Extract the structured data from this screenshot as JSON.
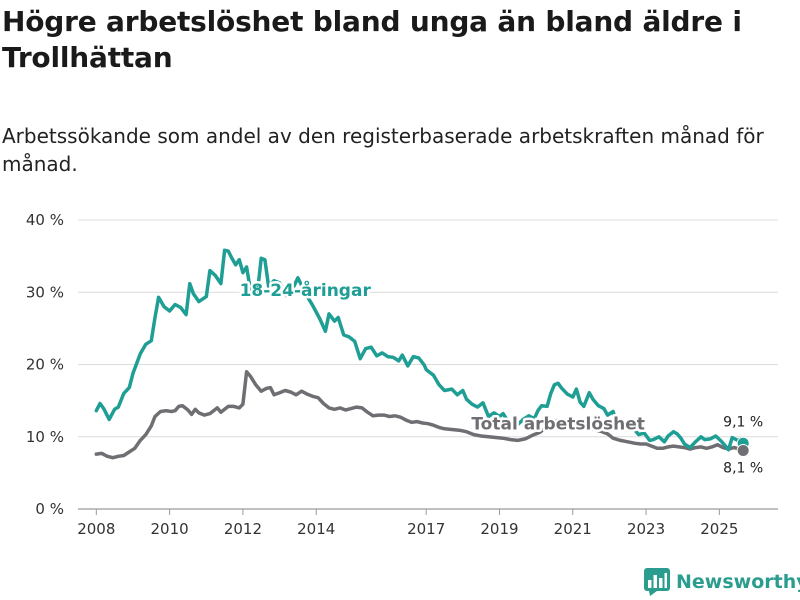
{
  "header": {
    "title": "Högre arbetslöshet bland unga än bland äldre i Trollhättan",
    "subtitle": "Arbetssökande som andel av den registerbaserade arbetskraften månad för månad."
  },
  "brand": {
    "name": "Newsworthy",
    "color": "#2a9d8f"
  },
  "chart_data": {
    "type": "line",
    "title": "Högre arbetslöshet bland unga än bland äldre i Trollhättan",
    "subtitle": "Arbetssökande som andel av den registerbaserade arbetskraften månad för månad.",
    "xlabel": "",
    "ylabel": "",
    "xlim": [
      2007.5,
      2026.6
    ],
    "ylim": [
      0,
      40
    ],
    "grid": true,
    "y_ticks": [
      {
        "value": 0,
        "label": "0 %"
      },
      {
        "value": 10,
        "label": "10 %"
      },
      {
        "value": 20,
        "label": "20 %"
      },
      {
        "value": 30,
        "label": "30 %"
      },
      {
        "value": 40,
        "label": "40 %"
      }
    ],
    "x_ticks": [
      {
        "value": 2008,
        "label": "2008"
      },
      {
        "value": 2010,
        "label": "2010"
      },
      {
        "value": 2012,
        "label": "2012"
      },
      {
        "value": 2014,
        "label": "2014"
      },
      {
        "value": 2017,
        "label": "2017"
      },
      {
        "value": 2019,
        "label": "2019"
      },
      {
        "value": 2021,
        "label": "2021"
      },
      {
        "value": 2023,
        "label": "2023"
      },
      {
        "value": 2025,
        "label": "2025"
      }
    ],
    "series": [
      {
        "name": "18-24-åringar",
        "color": "#1e9e94",
        "end_label": "9,1 %",
        "points": [
          [
            2008.0,
            13.6
          ],
          [
            2008.1,
            14.6
          ],
          [
            2008.2,
            13.9
          ],
          [
            2008.35,
            12.4
          ],
          [
            2008.5,
            13.8
          ],
          [
            2008.6,
            14.1
          ],
          [
            2008.75,
            16.0
          ],
          [
            2008.9,
            16.8
          ],
          [
            2009.0,
            18.8
          ],
          [
            2009.2,
            21.5
          ],
          [
            2009.35,
            22.8
          ],
          [
            2009.5,
            23.3
          ],
          [
            2009.6,
            26.5
          ],
          [
            2009.7,
            29.3
          ],
          [
            2009.85,
            28.0
          ],
          [
            2010.0,
            27.4
          ],
          [
            2010.15,
            28.3
          ],
          [
            2010.3,
            27.9
          ],
          [
            2010.45,
            26.9
          ],
          [
            2010.55,
            31.2
          ],
          [
            2010.65,
            29.8
          ],
          [
            2010.8,
            28.7
          ],
          [
            2011.0,
            29.4
          ],
          [
            2011.1,
            33.0
          ],
          [
            2011.25,
            32.3
          ],
          [
            2011.4,
            31.2
          ],
          [
            2011.5,
            35.8
          ],
          [
            2011.6,
            35.7
          ],
          [
            2011.7,
            34.7
          ],
          [
            2011.8,
            33.8
          ],
          [
            2011.9,
            34.5
          ],
          [
            2012.0,
            32.7
          ],
          [
            2012.1,
            33.5
          ],
          [
            2012.2,
            30.4
          ],
          [
            2012.4,
            30.2
          ],
          [
            2012.5,
            34.7
          ],
          [
            2012.6,
            34.5
          ],
          [
            2012.7,
            30.8
          ],
          [
            2012.85,
            31.6
          ],
          [
            2013.0,
            31.3
          ],
          [
            2013.2,
            29.5
          ],
          [
            2013.35,
            30.4
          ],
          [
            2013.5,
            32.0
          ],
          [
            2013.7,
            29.9
          ],
          [
            2013.9,
            28.2
          ],
          [
            2014.1,
            26.3
          ],
          [
            2014.25,
            24.6
          ],
          [
            2014.35,
            27.0
          ],
          [
            2014.5,
            26.0
          ],
          [
            2014.6,
            26.5
          ],
          [
            2014.75,
            24.1
          ],
          [
            2014.9,
            23.8
          ],
          [
            2015.05,
            23.2
          ],
          [
            2015.2,
            20.8
          ],
          [
            2015.35,
            22.2
          ],
          [
            2015.5,
            22.4
          ],
          [
            2015.65,
            21.2
          ],
          [
            2015.8,
            21.6
          ],
          [
            2015.95,
            21.1
          ],
          [
            2016.1,
            21.0
          ],
          [
            2016.25,
            20.5
          ],
          [
            2016.35,
            21.3
          ],
          [
            2016.5,
            19.8
          ],
          [
            2016.65,
            21.1
          ],
          [
            2016.8,
            20.9
          ],
          [
            2016.95,
            19.9
          ],
          [
            2017.0,
            19.3
          ],
          [
            2017.2,
            18.5
          ],
          [
            2017.35,
            17.2
          ],
          [
            2017.5,
            16.4
          ],
          [
            2017.7,
            16.6
          ],
          [
            2017.85,
            15.8
          ],
          [
            2018.0,
            16.4
          ],
          [
            2018.1,
            15.2
          ],
          [
            2018.25,
            14.5
          ],
          [
            2018.4,
            14.1
          ],
          [
            2018.55,
            14.7
          ],
          [
            2018.7,
            12.8
          ],
          [
            2018.85,
            13.3
          ],
          [
            2019.0,
            12.8
          ],
          [
            2019.1,
            13.2
          ],
          [
            2019.2,
            12.4
          ],
          [
            2019.35,
            11.9
          ],
          [
            2019.5,
            11.7
          ],
          [
            2019.65,
            12.4
          ],
          [
            2019.8,
            12.9
          ],
          [
            2019.95,
            12.5
          ],
          [
            2020.05,
            13.6
          ],
          [
            2020.15,
            14.3
          ],
          [
            2020.3,
            14.2
          ],
          [
            2020.4,
            16.0
          ],
          [
            2020.5,
            17.2
          ],
          [
            2020.6,
            17.4
          ],
          [
            2020.7,
            16.7
          ],
          [
            2020.85,
            15.9
          ],
          [
            2021.0,
            15.5
          ],
          [
            2021.1,
            16.6
          ],
          [
            2021.2,
            14.8
          ],
          [
            2021.3,
            14.2
          ],
          [
            2021.45,
            16.1
          ],
          [
            2021.55,
            15.2
          ],
          [
            2021.7,
            14.3
          ],
          [
            2021.85,
            13.9
          ],
          [
            2021.95,
            13.0
          ],
          [
            2022.1,
            13.5
          ],
          [
            2022.2,
            11.8
          ],
          [
            2022.35,
            12.3
          ],
          [
            2022.5,
            11.3
          ],
          [
            2022.65,
            11.2
          ],
          [
            2022.8,
            10.3
          ],
          [
            2022.95,
            10.5
          ],
          [
            2023.1,
            9.5
          ],
          [
            2023.2,
            9.6
          ],
          [
            2023.35,
            10.0
          ],
          [
            2023.5,
            9.3
          ],
          [
            2023.6,
            10.1
          ],
          [
            2023.75,
            10.7
          ],
          [
            2023.85,
            10.4
          ],
          [
            2023.95,
            9.8
          ],
          [
            2024.05,
            9.0
          ],
          [
            2024.2,
            8.5
          ],
          [
            2024.35,
            9.3
          ],
          [
            2024.5,
            10.0
          ],
          [
            2024.6,
            9.6
          ],
          [
            2024.75,
            9.7
          ],
          [
            2024.9,
            10.1
          ],
          [
            2025.05,
            9.4
          ],
          [
            2025.15,
            8.8
          ],
          [
            2025.25,
            8.2
          ],
          [
            2025.35,
            9.9
          ],
          [
            2025.5,
            9.5
          ],
          [
            2025.6,
            9.7
          ],
          [
            2025.65,
            9.1
          ]
        ]
      },
      {
        "name": "Total arbetslöshet",
        "color": "#6e6e73",
        "end_label": "8,1 %",
        "points": [
          [
            2008.0,
            7.6
          ],
          [
            2008.15,
            7.7
          ],
          [
            2008.3,
            7.3
          ],
          [
            2008.45,
            7.1
          ],
          [
            2008.6,
            7.3
          ],
          [
            2008.75,
            7.4
          ],
          [
            2008.9,
            7.9
          ],
          [
            2009.05,
            8.4
          ],
          [
            2009.2,
            9.5
          ],
          [
            2009.35,
            10.3
          ],
          [
            2009.5,
            11.5
          ],
          [
            2009.6,
            12.8
          ],
          [
            2009.75,
            13.5
          ],
          [
            2009.9,
            13.6
          ],
          [
            2010.05,
            13.5
          ],
          [
            2010.15,
            13.6
          ],
          [
            2010.25,
            14.2
          ],
          [
            2010.35,
            14.3
          ],
          [
            2010.5,
            13.7
          ],
          [
            2010.6,
            13.1
          ],
          [
            2010.7,
            13.8
          ],
          [
            2010.8,
            13.3
          ],
          [
            2010.95,
            13.0
          ],
          [
            2011.1,
            13.2
          ],
          [
            2011.2,
            13.6
          ],
          [
            2011.3,
            14.0
          ],
          [
            2011.4,
            13.4
          ],
          [
            2011.5,
            13.8
          ],
          [
            2011.6,
            14.2
          ],
          [
            2011.75,
            14.2
          ],
          [
            2011.9,
            14.0
          ],
          [
            2012.0,
            14.5
          ],
          [
            2012.1,
            19.0
          ],
          [
            2012.2,
            18.4
          ],
          [
            2012.35,
            17.2
          ],
          [
            2012.5,
            16.3
          ],
          [
            2012.65,
            16.7
          ],
          [
            2012.75,
            16.8
          ],
          [
            2012.85,
            15.8
          ],
          [
            2013.0,
            16.1
          ],
          [
            2013.15,
            16.4
          ],
          [
            2013.3,
            16.2
          ],
          [
            2013.45,
            15.8
          ],
          [
            2013.6,
            16.3
          ],
          [
            2013.75,
            15.9
          ],
          [
            2013.9,
            15.6
          ],
          [
            2014.05,
            15.4
          ],
          [
            2014.2,
            14.6
          ],
          [
            2014.35,
            14.0
          ],
          [
            2014.5,
            13.8
          ],
          [
            2014.65,
            14.0
          ],
          [
            2014.8,
            13.7
          ],
          [
            2014.95,
            13.9
          ],
          [
            2015.1,
            14.1
          ],
          [
            2015.25,
            14.0
          ],
          [
            2015.4,
            13.4
          ],
          [
            2015.55,
            12.9
          ],
          [
            2015.7,
            13.0
          ],
          [
            2015.85,
            13.0
          ],
          [
            2016.0,
            12.8
          ],
          [
            2016.15,
            12.9
          ],
          [
            2016.3,
            12.7
          ],
          [
            2016.45,
            12.3
          ],
          [
            2016.6,
            12.0
          ],
          [
            2016.75,
            12.1
          ],
          [
            2016.9,
            11.9
          ],
          [
            2017.05,
            11.8
          ],
          [
            2017.2,
            11.6
          ],
          [
            2017.35,
            11.3
          ],
          [
            2017.5,
            11.1
          ],
          [
            2017.7,
            11.0
          ],
          [
            2017.9,
            10.9
          ],
          [
            2018.1,
            10.7
          ],
          [
            2018.3,
            10.3
          ],
          [
            2018.5,
            10.1
          ],
          [
            2018.7,
            10.0
          ],
          [
            2018.9,
            9.9
          ],
          [
            2019.1,
            9.8
          ],
          [
            2019.3,
            9.6
          ],
          [
            2019.5,
            9.5
          ],
          [
            2019.7,
            9.7
          ],
          [
            2019.9,
            10.2
          ],
          [
            2020.1,
            10.6
          ],
          [
            2020.3,
            11.4
          ],
          [
            2020.5,
            12.1
          ],
          [
            2020.6,
            12.3
          ],
          [
            2020.75,
            11.9
          ],
          [
            2020.9,
            12.0
          ],
          [
            2021.05,
            11.9
          ],
          [
            2021.2,
            11.4
          ],
          [
            2021.35,
            11.6
          ],
          [
            2021.5,
            11.1
          ],
          [
            2021.65,
            10.9
          ],
          [
            2021.8,
            10.7
          ],
          [
            2021.95,
            10.4
          ],
          [
            2022.1,
            9.8
          ],
          [
            2022.3,
            9.5
          ],
          [
            2022.5,
            9.3
          ],
          [
            2022.7,
            9.1
          ],
          [
            2022.85,
            9.0
          ],
          [
            2023.0,
            9.0
          ],
          [
            2023.15,
            8.7
          ],
          [
            2023.3,
            8.4
          ],
          [
            2023.45,
            8.4
          ],
          [
            2023.6,
            8.6
          ],
          [
            2023.75,
            8.7
          ],
          [
            2023.9,
            8.6
          ],
          [
            2024.05,
            8.5
          ],
          [
            2024.2,
            8.3
          ],
          [
            2024.35,
            8.5
          ],
          [
            2024.5,
            8.6
          ],
          [
            2024.65,
            8.4
          ],
          [
            2024.8,
            8.6
          ],
          [
            2024.95,
            8.9
          ],
          [
            2025.1,
            8.5
          ],
          [
            2025.25,
            8.3
          ],
          [
            2025.4,
            8.5
          ],
          [
            2025.55,
            8.3
          ],
          [
            2025.65,
            8.1
          ]
        ]
      }
    ],
    "annotations": [
      {
        "text": "18-24-åringar",
        "series": 0,
        "x": 2013.7,
        "y": 29.5
      },
      {
        "text": "Total arbetslöshet",
        "series": 1,
        "x": 2020.6,
        "y": 11.0
      }
    ]
  }
}
